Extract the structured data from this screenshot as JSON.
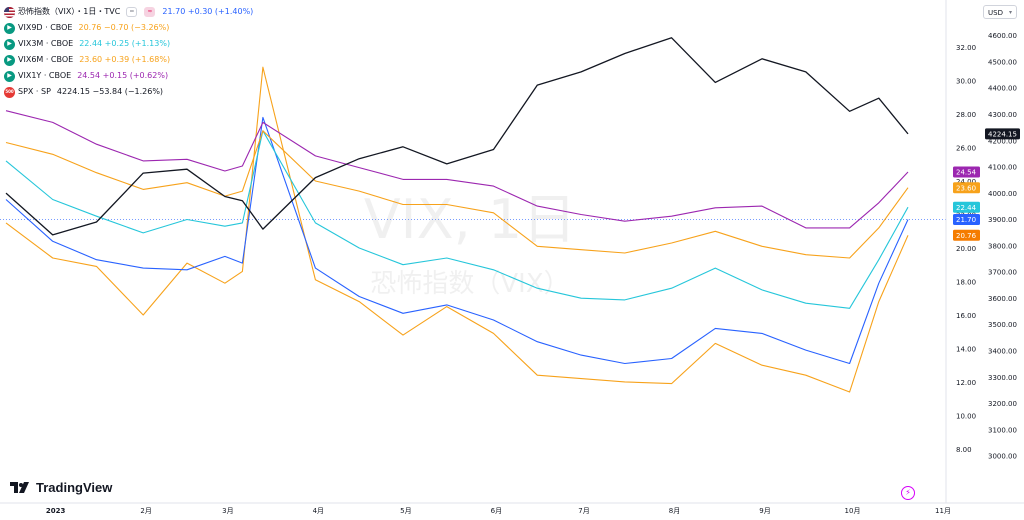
{
  "legend": {
    "main": {
      "icon": "us-flag-icon",
      "name": "恐怖指数（VIX）・1日・TVC",
      "pill1": "=",
      "pill2": "≈",
      "values": "21.70 +0.30 (+1.40%)",
      "value_color": "#2962ff"
    },
    "items": [
      {
        "icon": "green-play-icon",
        "icon_color": "#089981",
        "name": "VIX9D · CBOE",
        "values": "20.76 −0.70 (−3.26%)",
        "color": "#f7a21b"
      },
      {
        "icon": "green-play-icon",
        "icon_color": "#089981",
        "name": "VIX3M · CBOE",
        "values": "22.44 +0.25 (+1.13%)",
        "color": "#26c6da"
      },
      {
        "icon": "green-play-icon",
        "icon_color": "#089981",
        "name": "VIX6M · CBOE",
        "values": "23.60 +0.39 (+1.68%)",
        "color": "#f7a21b"
      },
      {
        "icon": "green-play-icon",
        "icon_color": "#089981",
        "name": "VIX1Y · CBOE",
        "values": "24.54 +0.15 (+0.62%)",
        "color": "#9c27b0"
      },
      {
        "icon": "sp500-badge-icon",
        "icon_color": "#e53935",
        "icon_text": "500",
        "name": "SPX · SP",
        "values": "4224.15 −53.84 (−1.26%)",
        "color": "#131722"
      }
    ]
  },
  "currency": "USD",
  "watermark": {
    "main": "VIX, 1日",
    "sub": "恐怖指数（VIX）"
  },
  "brand": "TradingView",
  "bolt_icon": "lightning-icon",
  "chart_data": {
    "type": "line",
    "x": [
      "2022-12-15",
      "2022-12-31",
      "2023-01-15",
      "2023-01-31",
      "2023-02-15",
      "2023-02-28",
      "2023-03-06",
      "2023-03-13",
      "2023-03-31",
      "2023-04-15",
      "2023-04-30",
      "2023-05-15",
      "2023-05-31",
      "2023-06-15",
      "2023-06-30",
      "2023-07-15",
      "2023-07-31",
      "2023-08-15",
      "2023-08-31",
      "2023-09-15",
      "2023-09-30",
      "2023-10-10",
      "2023-10-20"
    ],
    "x_ticks": [
      "2023",
      "2月",
      "3月",
      "4月",
      "5月",
      "6月",
      "7月",
      "8月",
      "9月",
      "10月",
      "11月"
    ],
    "y_left_ticks": [
      "8.00",
      "10.00",
      "12.00",
      "14.00",
      "16.00",
      "18.00",
      "20.00",
      "22.00",
      "24.00",
      "26.00",
      "28.00",
      "30.00",
      "32.00"
    ],
    "y_right_ticks": [
      "3000.00",
      "3100.00",
      "3200.00",
      "3300.00",
      "3400.00",
      "3500.00",
      "3600.00",
      "3700.00",
      "3800.00",
      "3900.00",
      "4000.00",
      "4100.00",
      "4200.00",
      "4300.00",
      "4400.00",
      "4500.00",
      "4600.00"
    ],
    "ylim_vix": [
      6.5,
      33.5
    ],
    "ylim_spx": [
      2930,
      4650
    ],
    "grid": false,
    "series": [
      {
        "name": "VIX9D",
        "axis": "vix",
        "color": "#f7a21b",
        "values": [
          21.5,
          19.4,
          18.9,
          16.0,
          19.1,
          17.9,
          18.6,
          30.8,
          18.1,
          16.8,
          14.8,
          16.5,
          14.9,
          12.4,
          12.2,
          12.0,
          11.9,
          14.3,
          13.0,
          12.4,
          11.4,
          16.8,
          20.76
        ]
      },
      {
        "name": "VIX",
        "axis": "vix",
        "color": "#2962ff",
        "values": [
          22.9,
          20.4,
          19.3,
          18.8,
          18.7,
          19.5,
          19.1,
          27.8,
          18.8,
          17.1,
          16.1,
          16.6,
          15.7,
          14.4,
          13.6,
          13.1,
          13.4,
          15.2,
          14.9,
          13.9,
          13.1,
          17.9,
          21.7
        ]
      },
      {
        "name": "VIX3M",
        "axis": "vix",
        "color": "#26c6da",
        "values": [
          25.2,
          22.9,
          21.9,
          20.9,
          21.7,
          21.3,
          21.5,
          27.0,
          21.5,
          20.0,
          19.0,
          19.4,
          18.7,
          17.6,
          17.0,
          16.9,
          17.6,
          18.8,
          17.5,
          16.7,
          16.4,
          19.3,
          22.44
        ]
      },
      {
        "name": "VIX6M",
        "axis": "vix",
        "color": "#f7a21b",
        "values": [
          26.3,
          25.6,
          24.5,
          23.5,
          23.9,
          23.1,
          23.4,
          27.0,
          24.0,
          23.4,
          22.6,
          22.6,
          22.1,
          20.1,
          19.9,
          19.7,
          20.3,
          21.0,
          20.1,
          19.6,
          19.4,
          21.2,
          23.6
        ]
      },
      {
        "name": "VIX1Y",
        "axis": "vix",
        "color": "#9c27b0",
        "values": [
          28.2,
          27.5,
          26.2,
          25.2,
          25.3,
          24.6,
          24.9,
          27.5,
          25.5,
          24.8,
          24.1,
          24.1,
          23.7,
          22.5,
          22.0,
          21.6,
          21.9,
          22.4,
          22.5,
          21.2,
          21.2,
          22.7,
          24.54
        ]
      },
      {
        "name": "SPX",
        "axis": "spx",
        "color": "#131722",
        "values": [
          3999,
          3840,
          3889,
          4075,
          4090,
          3986,
          3970,
          3862,
          4058,
          4130,
          4175,
          4110,
          4165,
          4410,
          4460,
          4530,
          4590,
          4420,
          4510,
          4460,
          4310,
          4360,
          4224.15
        ]
      }
    ],
    "last_labels": [
      {
        "text": "4224.15",
        "bg": "#131722",
        "axis": "spx",
        "value": 4224.15
      },
      {
        "text": "24.54",
        "bg": "#9c27b0",
        "axis": "vix",
        "value": 24.54
      },
      {
        "text": "23.60",
        "bg": "#f7a21b",
        "axis": "vix",
        "value": 23.6
      },
      {
        "text": "22.44",
        "bg": "#26c6da",
        "axis": "vix",
        "value": 22.44
      },
      {
        "text": "21.70",
        "bg": "#2962ff",
        "axis": "vix",
        "value": 21.7
      },
      {
        "text": "20.76",
        "bg": "#f57c00",
        "axis": "vix",
        "value": 20.76
      }
    ],
    "reference_line": {
      "axis": "vix",
      "value": 21.7,
      "color": "#2962ff"
    }
  }
}
